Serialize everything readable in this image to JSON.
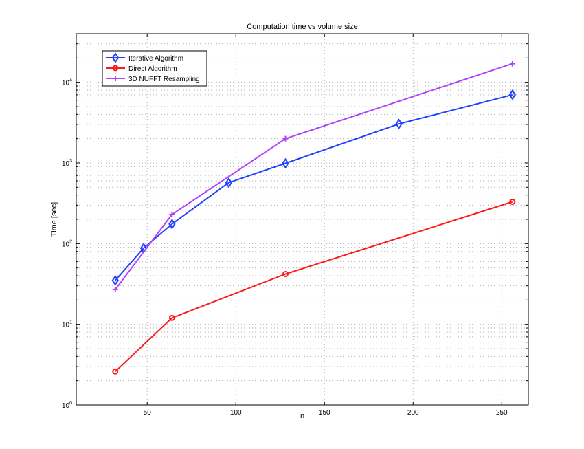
{
  "chart_data": {
    "type": "line",
    "title": "Computation time vs volume size",
    "xlabel": "n",
    "ylabel": "Time [sec]",
    "xlim": [
      10,
      265
    ],
    "ylim": [
      1,
      40000
    ],
    "yscale": "log",
    "grid": true,
    "xticks": [
      50,
      100,
      150,
      200,
      250
    ],
    "yticks": [
      {
        "value": 1,
        "base": "10",
        "exp": "0"
      },
      {
        "value": 10,
        "base": "10",
        "exp": "1"
      },
      {
        "value": 100,
        "base": "10",
        "exp": "2"
      },
      {
        "value": 1000,
        "base": "10",
        "exp": "3"
      },
      {
        "value": 10000,
        "base": "10",
        "exp": "4"
      }
    ],
    "legend_position": "top-left",
    "series": [
      {
        "name": "Iterative Algorithm",
        "color": "#1f3fff",
        "marker": "diamond",
        "x": [
          32,
          48,
          64,
          96,
          128,
          192,
          256
        ],
        "y": [
          35,
          88,
          175,
          570,
          990,
          3050,
          7000
        ]
      },
      {
        "name": "Direct Algorithm",
        "color": "#ff1a1a",
        "marker": "circle",
        "x": [
          32,
          64,
          128,
          256
        ],
        "y": [
          2.6,
          12,
          42,
          330
        ]
      },
      {
        "name": "3D NUFFT Resampling",
        "color": "#b040ff",
        "marker": "plus",
        "x": [
          32,
          64,
          128,
          256
        ],
        "y": [
          27,
          230,
          2000,
          17000
        ]
      }
    ]
  }
}
